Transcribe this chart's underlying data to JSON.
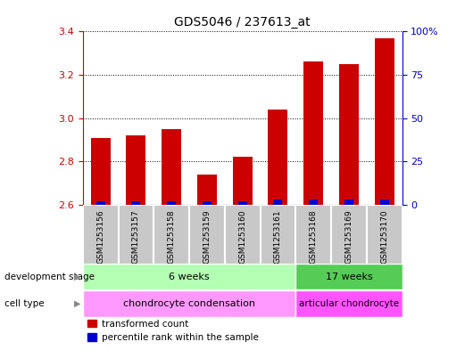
{
  "title": "GDS5046 / 237613_at",
  "samples": [
    "GSM1253156",
    "GSM1253157",
    "GSM1253158",
    "GSM1253159",
    "GSM1253160",
    "GSM1253161",
    "GSM1253168",
    "GSM1253169",
    "GSM1253170"
  ],
  "transformed_count": [
    2.91,
    2.92,
    2.95,
    2.74,
    2.82,
    3.04,
    3.26,
    3.25,
    3.37
  ],
  "percentile_rank": [
    2,
    2,
    2,
    2,
    2,
    3,
    3,
    3,
    3
  ],
  "ylim_left": [
    2.6,
    3.4
  ],
  "ylim_right": [
    0,
    100
  ],
  "yticks_left": [
    2.6,
    2.8,
    3.0,
    3.2,
    3.4
  ],
  "yticks_right": [
    0,
    25,
    50,
    75,
    100
  ],
  "ytick_labels_right": [
    "0",
    "25",
    "50",
    "75",
    "100%"
  ],
  "bar_color_red": "#cc0000",
  "bar_color_blue": "#0000cc",
  "bar_width": 0.55,
  "baseline": 2.6,
  "group1_count": 6,
  "group2_count": 3,
  "dev_stage_label": "development stage",
  "cell_type_label": "cell type",
  "dev_stage_group1": "6 weeks",
  "dev_stage_group2": "17 weeks",
  "cell_type_group1": "chondrocyte condensation",
  "cell_type_group2": "articular chondrocyte",
  "dev_stage_color1": "#b3ffb3",
  "dev_stage_color2": "#55cc55",
  "cell_type_color1": "#ff99ff",
  "cell_type_color2": "#ff55ff",
  "legend_red_label": "transformed count",
  "legend_blue_label": "percentile rank within the sample",
  "tick_color_left": "#cc0000",
  "tick_color_right": "#0000cc",
  "sample_box_color": "#c8c8c8",
  "sample_box_edge": "#ffffff"
}
